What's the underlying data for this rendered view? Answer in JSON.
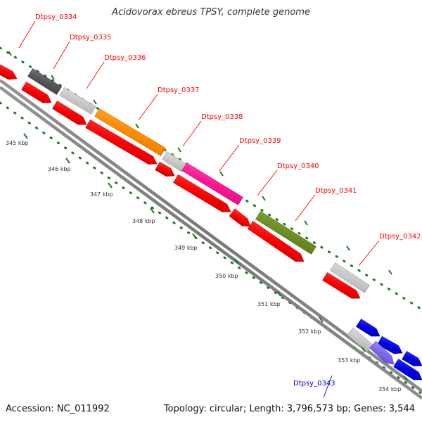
{
  "title": "Acidovorax ebreus TPSY, complete genome",
  "footer": {
    "accession_label": "Accession:",
    "accession": "NC_011992",
    "topology_label": "Topology:",
    "topology": "circular",
    "length_label": "Length:",
    "length": "3,796,573 bp",
    "genes_label": "Genes:",
    "genes": "3,544",
    "accession_text": "Accession: NC_011992",
    "summary_text": "Topology: circular; Length: 3,796,573 bp; Genes: 3,544"
  },
  "scale_labels": [
    "345 kbp",
    "346 kbp",
    "347 kbp",
    "348 kbp",
    "349 kbp",
    "350 kbp",
    "351 kbp",
    "352 kbp",
    "353 kbp",
    "354 kbp"
  ],
  "gene_labels": [
    {
      "name": "Dtpsy_0334",
      "color": "#ff0000"
    },
    {
      "name": "Dtpsy_0335",
      "color": "#ff0000"
    },
    {
      "name": "Dtpsy_0336",
      "color": "#ff0000"
    },
    {
      "name": "Dtpsy_0337",
      "color": "#ff0000"
    },
    {
      "name": "Dtpsy_0338",
      "color": "#ff0000"
    },
    {
      "name": "Dtpsy_0339",
      "color": "#ff0000"
    },
    {
      "name": "Dtpsy_0340",
      "color": "#ff0000"
    },
    {
      "name": "Dtpsy_0341",
      "color": "#ff0000"
    },
    {
      "name": "Dtpsy_0342",
      "color": "#ff0000"
    },
    {
      "name": "Dtpsy_0343",
      "color": "#0000cc"
    }
  ],
  "colors": {
    "cds_red": "#ff0000",
    "dark_gray": "#555555",
    "light_gray": "#c8c8c8",
    "orange": "#ff8c00",
    "magenta": "#ff1493",
    "olive": "#6b8e23",
    "blue": "#0000ee",
    "lavender": "#7b68ee",
    "tick_green": "#1e7b1e",
    "backbone_gray": "#888888"
  }
}
